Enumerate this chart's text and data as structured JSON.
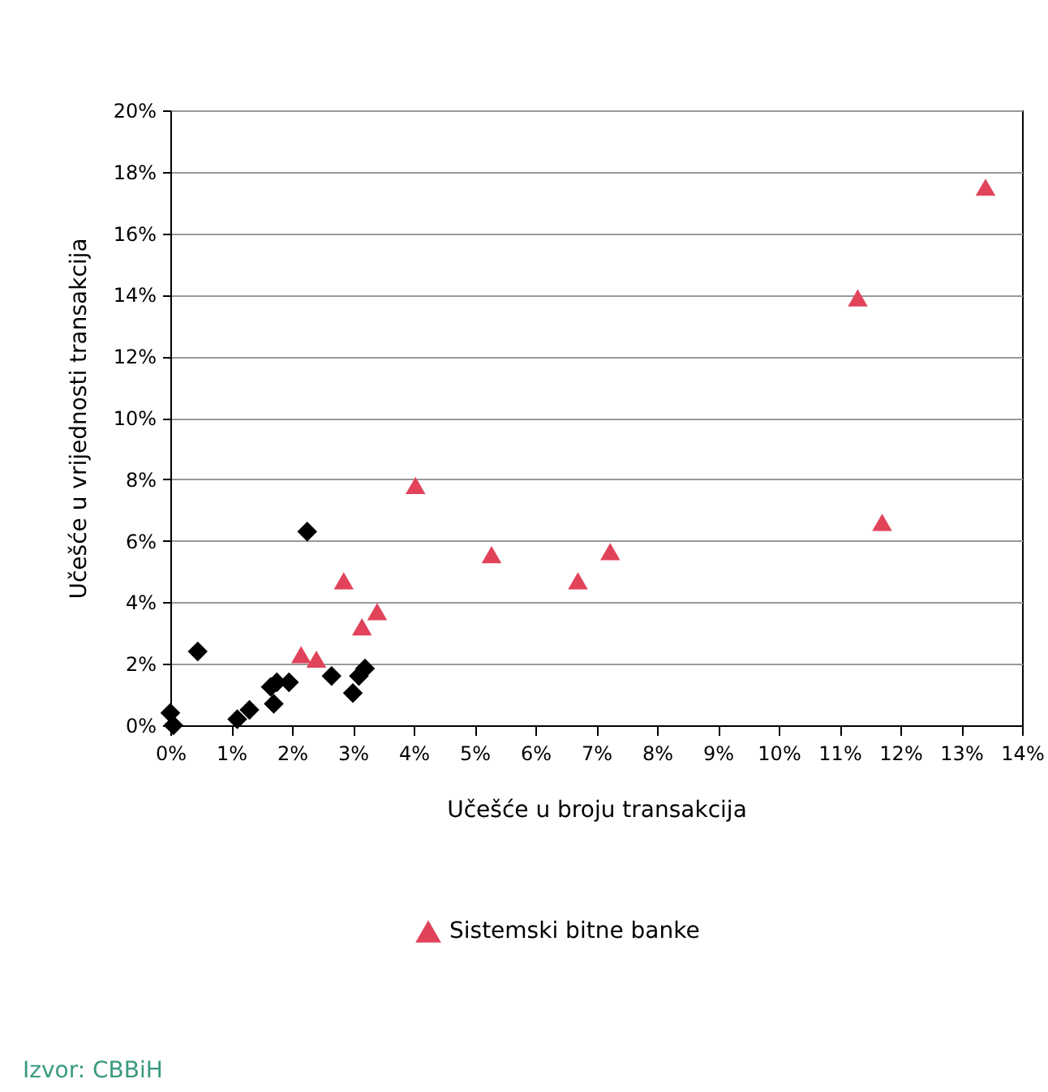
{
  "chart_data": {
    "type": "scatter",
    "xlabel": "Učešće u broju transakcija",
    "ylabel": "Učešće u vrijednosti transakcija",
    "annotations": [
      "Izvor: CBBiH"
    ],
    "xlim": [
      0,
      14
    ],
    "xticks": [
      {
        "value": 0,
        "label": "0%"
      },
      {
        "value": 1,
        "label": "1%"
      },
      {
        "value": 2,
        "label": "2%"
      },
      {
        "value": 3,
        "label": "3%"
      },
      {
        "value": 4,
        "label": "4%"
      },
      {
        "value": 5,
        "label": "5%"
      },
      {
        "value": 6,
        "label": "6%"
      },
      {
        "value": 7,
        "label": "7%"
      },
      {
        "value": 8,
        "label": "8%"
      },
      {
        "value": 9,
        "label": "9%"
      },
      {
        "value": 10,
        "label": "10%"
      },
      {
        "value": 11,
        "label": "11%"
      },
      {
        "value": 12,
        "label": "12%"
      },
      {
        "value": 13,
        "label": "13%"
      },
      {
        "value": 14,
        "label": "14%"
      }
    ],
    "ylim": [
      0,
      20
    ],
    "yticks": [
      {
        "value": 0,
        "label": "0%"
      },
      {
        "value": 2,
        "label": "2%"
      },
      {
        "value": 4,
        "label": "4%"
      },
      {
        "value": 6,
        "label": "6%"
      },
      {
        "value": 8,
        "label": "8%"
      },
      {
        "value": 10,
        "label": "10%"
      },
      {
        "value": 12,
        "label": "12%"
      },
      {
        "value": 14,
        "label": "14%"
      },
      {
        "value": 16,
        "label": "16%"
      },
      {
        "value": 18,
        "label": "18%"
      },
      {
        "value": 20,
        "label": "20%"
      }
    ],
    "grid": "y",
    "legend": "bottom",
    "series": [
      {
        "color": "#000000",
        "marker": "diamond",
        "x": [
          0,
          0.05,
          0.45,
          1.1,
          1.3,
          1.65,
          1.7,
          1.75,
          1.95,
          2.25,
          2.65,
          3.0,
          3.1,
          3.2
        ],
        "values": [
          0.4,
          0,
          2.4,
          0.2,
          0.5,
          1.25,
          0.7,
          1.4,
          1.4,
          6.3,
          1.6,
          1.05,
          1.6,
          1.85
        ]
      },
      {
        "name": "Sistemski bitne banke",
        "color": "#e0435a",
        "marker": "triangle",
        "x": [
          2.15,
          2.4,
          2.85,
          3.15,
          3.4,
          4.03,
          5.28,
          6.7,
          7.23,
          11.3,
          11.7,
          13.4
        ],
        "values": [
          2.3,
          2.15,
          4.7,
          3.2,
          3.7,
          7.8,
          5.55,
          4.7,
          5.65,
          13.9,
          6.6,
          17.5
        ]
      }
    ]
  }
}
